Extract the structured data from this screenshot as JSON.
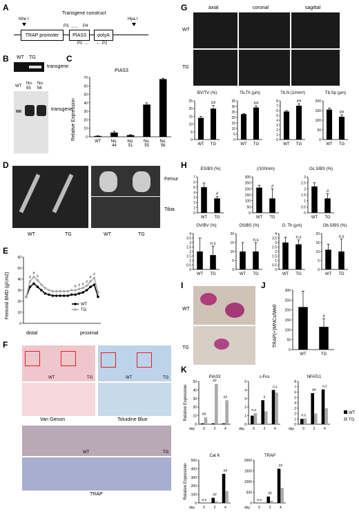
{
  "panels": {
    "A": "A",
    "B": "B",
    "C": "C",
    "D": "D",
    "E": "E",
    "F": "F",
    "G": "G",
    "H": "H",
    "I": "I",
    "J": "J",
    "K": "K"
  },
  "A": {
    "title": "Transgene  construct",
    "nhe": "Nhe I",
    "hpa": "Hpa I",
    "promoter": "TRAP promoter",
    "pias": "PIAS3",
    "polya": "polyA",
    "p1": "P1",
    "p2": "P2",
    "p3": "P3",
    "p4": "P4"
  },
  "B": {
    "wt": "WT",
    "tg": "TG",
    "no55": "No.\n55",
    "no56": "No.\n56",
    "transgene1": "transgene",
    "transgene2": "transgene"
  },
  "C": {
    "title": "PIAS3",
    "ylabel": "Relative Expression",
    "yticks": [
      "0",
      "10",
      "20",
      "30",
      "40",
      "50",
      "60",
      "70"
    ]
  },
  "D": {
    "wt": "WT",
    "tg": "TG",
    "femur": "Femur",
    "tibia": "Tibia"
  },
  "E": {
    "ylabel": "Femoral BMD (g/cm2)",
    "yticks": [
      "0",
      "10",
      "20",
      "30",
      "40",
      "50",
      "60"
    ],
    "distal": "distal",
    "proximal": "proximal",
    "legend": [
      "WT",
      "TG"
    ],
    "sig": "#"
  },
  "F": {
    "vg": "Van Gieson",
    "tb": "Toluidine Blue",
    "trap": "TRAP",
    "wt": "WT",
    "tg": "TG"
  },
  "G": {
    "axial": "axial",
    "coronal": "coronal",
    "sagittal": "sagittal",
    "wt": "WT",
    "tg": "TG"
  },
  "H": {
    "wt": "WT",
    "tg": "TG"
  },
  "I": {
    "wt": "WT",
    "tg": "TG"
  },
  "J": {
    "ylabel": "TRAP(+)MNCs/Well",
    "yticks": [
      "0",
      "50",
      "100",
      "150",
      "200",
      "250",
      "300"
    ],
    "x": [
      "WT",
      "TG"
    ],
    "sig": "#"
  },
  "K": {
    "ylabel": "Relative Expression",
    "day": "day",
    "legend": [
      "WT",
      "TG"
    ]
  },
  "chart_data": [
    {
      "panel": "C",
      "type": "bar",
      "title": "PIAS3",
      "ylabel": "Relative Expression",
      "categories": [
        "WT",
        "No.\n44",
        "No.\n51",
        "No.\n55",
        "No.\n56"
      ],
      "values": [
        1,
        5,
        2,
        38,
        68
      ],
      "errors": [
        0.3,
        1.5,
        0.5,
        2,
        1
      ],
      "ylim": [
        0,
        70
      ],
      "yticks": [
        0,
        10,
        20,
        30,
        40,
        50,
        60,
        70
      ]
    },
    {
      "panel": "E",
      "type": "line",
      "ylabel": "Femoral BMD (g/cm2)",
      "xlabel_left": "distal",
      "xlabel_right": "proximal",
      "ylim": [
        0,
        60
      ],
      "yticks": [
        0,
        10,
        20,
        30,
        40,
        50,
        60
      ],
      "series": [
        {
          "name": "WT",
          "values": [
            24,
            33,
            36,
            33,
            30,
            27,
            26,
            25,
            25,
            25,
            25,
            25,
            26,
            26,
            27,
            28,
            30,
            33,
            35,
            24
          ]
        },
        {
          "name": "TG",
          "values": [
            24,
            38,
            42,
            39,
            35,
            32,
            30,
            29,
            29,
            29,
            29,
            29,
            30,
            30,
            31,
            32,
            34,
            38,
            41,
            28
          ]
        }
      ],
      "annotations": [
        "#",
        "#",
        "#",
        "#",
        "#",
        "#",
        "#",
        "#",
        "#"
      ]
    },
    {
      "panel": "G",
      "type": "bar",
      "sub": [
        {
          "title": "BV/TV (%)",
          "categories": [
            "WT",
            "TG"
          ],
          "values": [
            14,
            20
          ],
          "errors": [
            1,
            2
          ],
          "ylim": [
            0,
            25
          ],
          "yticks": [
            0,
            5,
            10,
            15,
            20,
            25
          ],
          "sig": "##"
        },
        {
          "title": "Tb.Th (μm)",
          "categories": [
            "WT",
            "TG"
          ],
          "values": [
            23,
            29
          ],
          "errors": [
            0.5,
            1.5
          ],
          "ylim": [
            0,
            35
          ],
          "yticks": [
            0,
            5,
            10,
            15,
            20,
            25,
            30,
            35
          ],
          "sig": "##"
        },
        {
          "title": "Tb.N (1/mm²)",
          "categories": [
            "WT",
            "TG"
          ],
          "values": [
            5.8,
            7
          ],
          "errors": [
            0.2,
            0.4
          ],
          "ylim": [
            0,
            8
          ],
          "yticks": [
            0,
            1,
            2,
            3,
            4,
            5,
            6,
            7,
            8
          ],
          "sig": "##"
        },
        {
          "title": "Tb.Sp (μm)",
          "categories": [
            "WT",
            "TG"
          ],
          "values": [
            155,
            118
          ],
          "errors": [
            8,
            10
          ],
          "ylim": [
            0,
            200
          ],
          "yticks": [
            0,
            50,
            100,
            150,
            200
          ],
          "sig": "##"
        }
      ]
    },
    {
      "panel": "H",
      "type": "bar",
      "sub": [
        {
          "title": "ES/BS (%)",
          "categories": [
            "WT",
            "TG"
          ],
          "values": [
            5,
            2.8
          ],
          "errors": [
            0.8,
            0.4
          ],
          "ylim": [
            0,
            7
          ],
          "yticks": [
            0,
            1,
            2,
            3,
            4,
            5,
            6,
            7
          ],
          "sig": "#"
        },
        {
          "title": "N.Oc/B.Pm\n(/100mm)",
          "categories": [
            "WT",
            "TG"
          ],
          "values": [
            210,
            120
          ],
          "errors": [
            20,
            80
          ],
          "ylim": [
            0,
            300
          ],
          "yticks": [
            0,
            50,
            100,
            150,
            200,
            250,
            300
          ],
          "sig": "#"
        },
        {
          "title": "Oc.S/BS (%)",
          "categories": [
            "WT",
            "TG"
          ],
          "values": [
            2.2,
            1.2
          ],
          "errors": [
            0.3,
            0.4
          ],
          "ylim": [
            0,
            3
          ],
          "yticks": [
            0,
            0.5,
            1,
            1.5,
            2,
            2.5,
            3
          ],
          "sig": "#"
        },
        {
          "title": "OV/BV (%)",
          "categories": [
            "WT",
            "TG"
          ],
          "values": [
            2,
            1.6
          ],
          "errors": [
            1.5,
            1
          ],
          "ylim": [
            0,
            4
          ],
          "yticks": [
            0,
            0.5,
            1,
            1.5,
            2,
            2.5,
            3,
            3.5,
            4
          ],
          "sig": "n.s"
        },
        {
          "title": "OS/BS (%)",
          "categories": [
            "WT",
            "TG"
          ],
          "values": [
            10,
            10
          ],
          "errors": [
            5,
            5
          ],
          "ylim": [
            0,
            20
          ],
          "yticks": [
            0,
            5,
            10,
            15,
            20
          ],
          "sig": "n.s"
        },
        {
          "title": "O. Th (μm)",
          "categories": [
            "WT",
            "TG"
          ],
          "values": [
            3,
            2.8
          ],
          "errors": [
            0.6,
            0.5
          ],
          "ylim": [
            0,
            4
          ],
          "yticks": [
            0,
            0.5,
            1,
            1.5,
            2,
            2.5,
            3,
            3.5,
            4
          ],
          "sig": "n.s"
        },
        {
          "title": "Ob.S/BS (%)",
          "categories": [
            "WT",
            "TG"
          ],
          "values": [
            11,
            10
          ],
          "errors": [
            3,
            7
          ],
          "ylim": [
            0,
            20
          ],
          "yticks": [
            0,
            5,
            10,
            15,
            20
          ],
          "sig": "n.s"
        }
      ]
    },
    {
      "panel": "J",
      "type": "bar",
      "ylabel": "TRAP(+)MNCs/Well",
      "categories": [
        "WT",
        "TG"
      ],
      "values": [
        215,
        115
      ],
      "errors": [
        80,
        40
      ],
      "ylim": [
        0,
        300
      ],
      "yticks": [
        0,
        50,
        100,
        150,
        200,
        250,
        300
      ],
      "sig": "#"
    },
    {
      "panel": "K",
      "type": "bar",
      "xlabel": "day",
      "categories": [
        "0",
        "2",
        "4"
      ],
      "sub": [
        {
          "title": "PIAS3",
          "ylim": [
            0,
            50
          ],
          "yticks": [
            0,
            10,
            20,
            30,
            40,
            50
          ],
          "series": [
            {
              "name": "WT",
              "values": [
                1,
                1,
                1
              ]
            },
            {
              "name": "TG",
              "values": [
                8,
                47,
                28
              ]
            }
          ],
          "sig": [
            "##",
            "##",
            "##"
          ]
        },
        {
          "title": "c-Fos",
          "ylim": [
            0,
            5
          ],
          "yticks": [
            0,
            1,
            2,
            3,
            4,
            5
          ],
          "series": [
            {
              "name": "WT",
              "values": [
                1,
                2.8,
                4
              ]
            },
            {
              "name": "TG",
              "values": [
                1.3,
                1.5,
                3.7
              ]
            }
          ],
          "sig": [
            "n.s",
            "#",
            "n.s"
          ]
        },
        {
          "title": "NFATc1",
          "ylim": [
            0,
            8
          ],
          "yticks": [
            0,
            1,
            2,
            3,
            4,
            5,
            6,
            7,
            8
          ],
          "series": [
            {
              "name": "WT",
              "values": [
                1,
                5.8,
                6.5
              ]
            },
            {
              "name": "TG",
              "values": [
                1.1,
                2,
                3
              ]
            }
          ],
          "sig": [
            "n.s",
            "##",
            "n.s"
          ]
        },
        {
          "title": "Cat K",
          "ylim": [
            0,
            500
          ],
          "yticks": [
            0,
            100,
            200,
            300,
            400,
            500
          ],
          "series": [
            {
              "name": "WT",
              "values": [
                1,
                60,
                340
              ]
            },
            {
              "name": "TG",
              "values": [
                1,
                20,
                140
              ]
            }
          ],
          "sig": [
            "n.s",
            "##",
            "##"
          ]
        },
        {
          "title": "TRAP",
          "ylim": [
            0,
            2000
          ],
          "yticks": [
            0,
            500,
            1000,
            1500,
            2000
          ],
          "series": [
            {
              "name": "WT",
              "values": [
                1,
                300,
                1600
              ]
            },
            {
              "name": "TG",
              "values": [
                1,
                100,
                700
              ]
            }
          ],
          "sig": [
            "n.s",
            "##",
            "##"
          ]
        }
      ]
    }
  ]
}
